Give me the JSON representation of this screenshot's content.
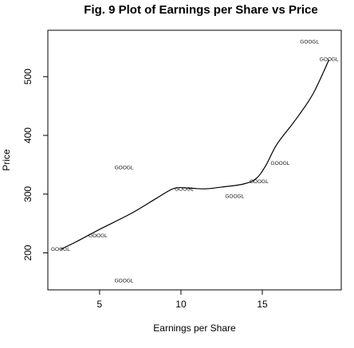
{
  "chart_data": {
    "type": "scatter",
    "title": "Fig. 9 Plot of Earnings per Share vs Price",
    "xlabel": "Earnings per Share",
    "ylabel": "Price",
    "xlim": [
      1.82,
      19.85
    ],
    "ylim": [
      137,
      579
    ],
    "x_ticks": [
      5,
      10,
      15
    ],
    "y_ticks": [
      200,
      300,
      400,
      500
    ],
    "points": [
      {
        "label": "GOOGL",
        "x": 2.6,
        "y": 206
      },
      {
        "label": "GOOGL",
        "x": 4.9,
        "y": 229
      },
      {
        "label": "GOOGL",
        "x": 6.5,
        "y": 345
      },
      {
        "label": "GOOGL",
        "x": 6.5,
        "y": 152
      },
      {
        "label": "GOOGL",
        "x": 10.2,
        "y": 308
      },
      {
        "label": "GOOGL",
        "x": 13.3,
        "y": 296
      },
      {
        "label": "GOOGL",
        "x": 14.8,
        "y": 321
      },
      {
        "label": "GOOGL",
        "x": 16.1,
        "y": 352
      },
      {
        "label": "GOOGL",
        "x": 17.9,
        "y": 559
      },
      {
        "label": "GOOGL",
        "x": 19.1,
        "y": 529
      }
    ],
    "smooth_line": [
      {
        "x": 2.6,
        "y": 206
      },
      {
        "x": 3.5,
        "y": 218
      },
      {
        "x": 5.0,
        "y": 240
      },
      {
        "x": 7.0,
        "y": 268
      },
      {
        "x": 8.5,
        "y": 293
      },
      {
        "x": 9.6,
        "y": 310
      },
      {
        "x": 10.6,
        "y": 310
      },
      {
        "x": 11.5,
        "y": 309
      },
      {
        "x": 12.5,
        "y": 312
      },
      {
        "x": 13.8,
        "y": 317
      },
      {
        "x": 14.6,
        "y": 326
      },
      {
        "x": 15.2,
        "y": 348
      },
      {
        "x": 15.9,
        "y": 385
      },
      {
        "x": 17.0,
        "y": 425
      },
      {
        "x": 18.1,
        "y": 470
      },
      {
        "x": 19.1,
        "y": 529
      }
    ],
    "grid": false,
    "legend": "none"
  }
}
